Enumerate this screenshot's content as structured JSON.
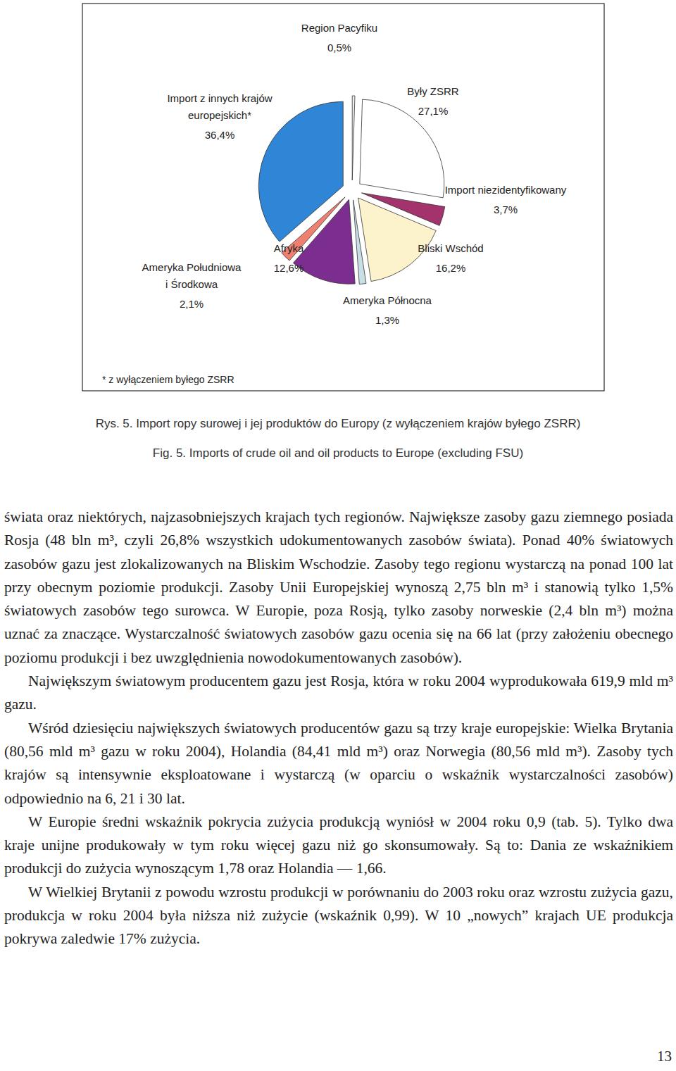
{
  "chart_data": {
    "type": "pie",
    "categories": [
      "Region Pacyfiku",
      "Były ZSRR",
      "Import niezidentyfikowany",
      "Bliski Wschód",
      "Ameryka Północna",
      "Afryka",
      "Ameryka Południowa i Środkowa",
      "Import z innych krajów europejskich*"
    ],
    "values": [
      0.5,
      27.1,
      3.7,
      16.2,
      1.3,
      12.6,
      2.1,
      36.4
    ],
    "value_labels": [
      "0,5%",
      "27,1%",
      "3,7%",
      "16,2%",
      "1,3%",
      "12,6%",
      "2,1%",
      "36,4%"
    ],
    "colors": [
      "#eeeeee",
      "#ffffff",
      "#a3326d",
      "#fcf3cd",
      "#c9dfe6",
      "#7b2e8f",
      "#ef7f6e",
      "#2f86d6"
    ],
    "data_labels": true
  },
  "document": {
    "footnote": "* z wyłączeniem byłego ZSRR",
    "caption_pl": "Rys. 5. Import ropy surowej i jej produktów do Europy (z wyłączeniem krajów byłego ZSRR)",
    "caption_en": "Fig. 5. Imports of crude oil and oil products to Europe (excluding FSU)",
    "paragraphs": [
      "świata oraz niektórych, najzasobniejszych krajach tych regionów. Największe zasoby gazu ziemnego posiada Rosja (48 bln m³, czyli 26,8% wszystkich udokumentowanych zasobów świata). Ponad 40% światowych zasobów gazu jest zlokalizowanych na Bliskim Wschodzie. Zasoby tego regionu wystarczą na ponad 100 lat przy obecnym poziomie produkcji. Zasoby Unii Europejskiej wynoszą 2,75 bln m³ i stanowią tylko 1,5% światowych zasobów tego surowca. W Europie, poza Rosją, tylko zasoby norweskie (2,4 bln m³) można uznać za znaczące. Wystarczalność światowych zasobów gazu ocenia się na 66 lat (przy założeniu obecnego poziomu produkcji i bez uwzględnienia nowodokumentowanych zasobów).",
      "Największym światowym producentem gazu jest Rosja, która w roku 2004 wyprodukowała 619,9 mld m³ gazu.",
      "Wśród dziesięciu największych światowych producentów gazu są trzy kraje europejskie: Wielka Brytania (80,56 mld m³ gazu w roku 2004), Holandia (84,41 mld m³) oraz Norwegia (80,56 mld m³). Zasoby tych krajów są intensywnie eksploatowane i wystarczą (w oparciu o wskaźnik wystarczalności zasobów) odpowiednio na 6, 21 i 30 lat.",
      "W Europie średni wskaźnik pokrycia zużycia produkcją wyniósł w 2004 roku 0,9 (tab. 5). Tylko dwa kraje unijne produkowały w tym roku więcej gazu niż go skonsumowały. Są to: Dania ze wskaźnikiem produkcji do zużycia wynoszącym 1,78 oraz Holandia — 1,66.",
      "W Wielkiej Brytanii z powodu wzrostu produkcji w porównaniu do 2003 roku oraz wzrostu zużycia gazu, produkcja w roku 2004 była niższa niż zużycie (wskaźnik 0,99). W 10 „nowych” krajach UE produkcja pokrywa zaledwie 17% zużycia."
    ],
    "page_number": "13"
  }
}
